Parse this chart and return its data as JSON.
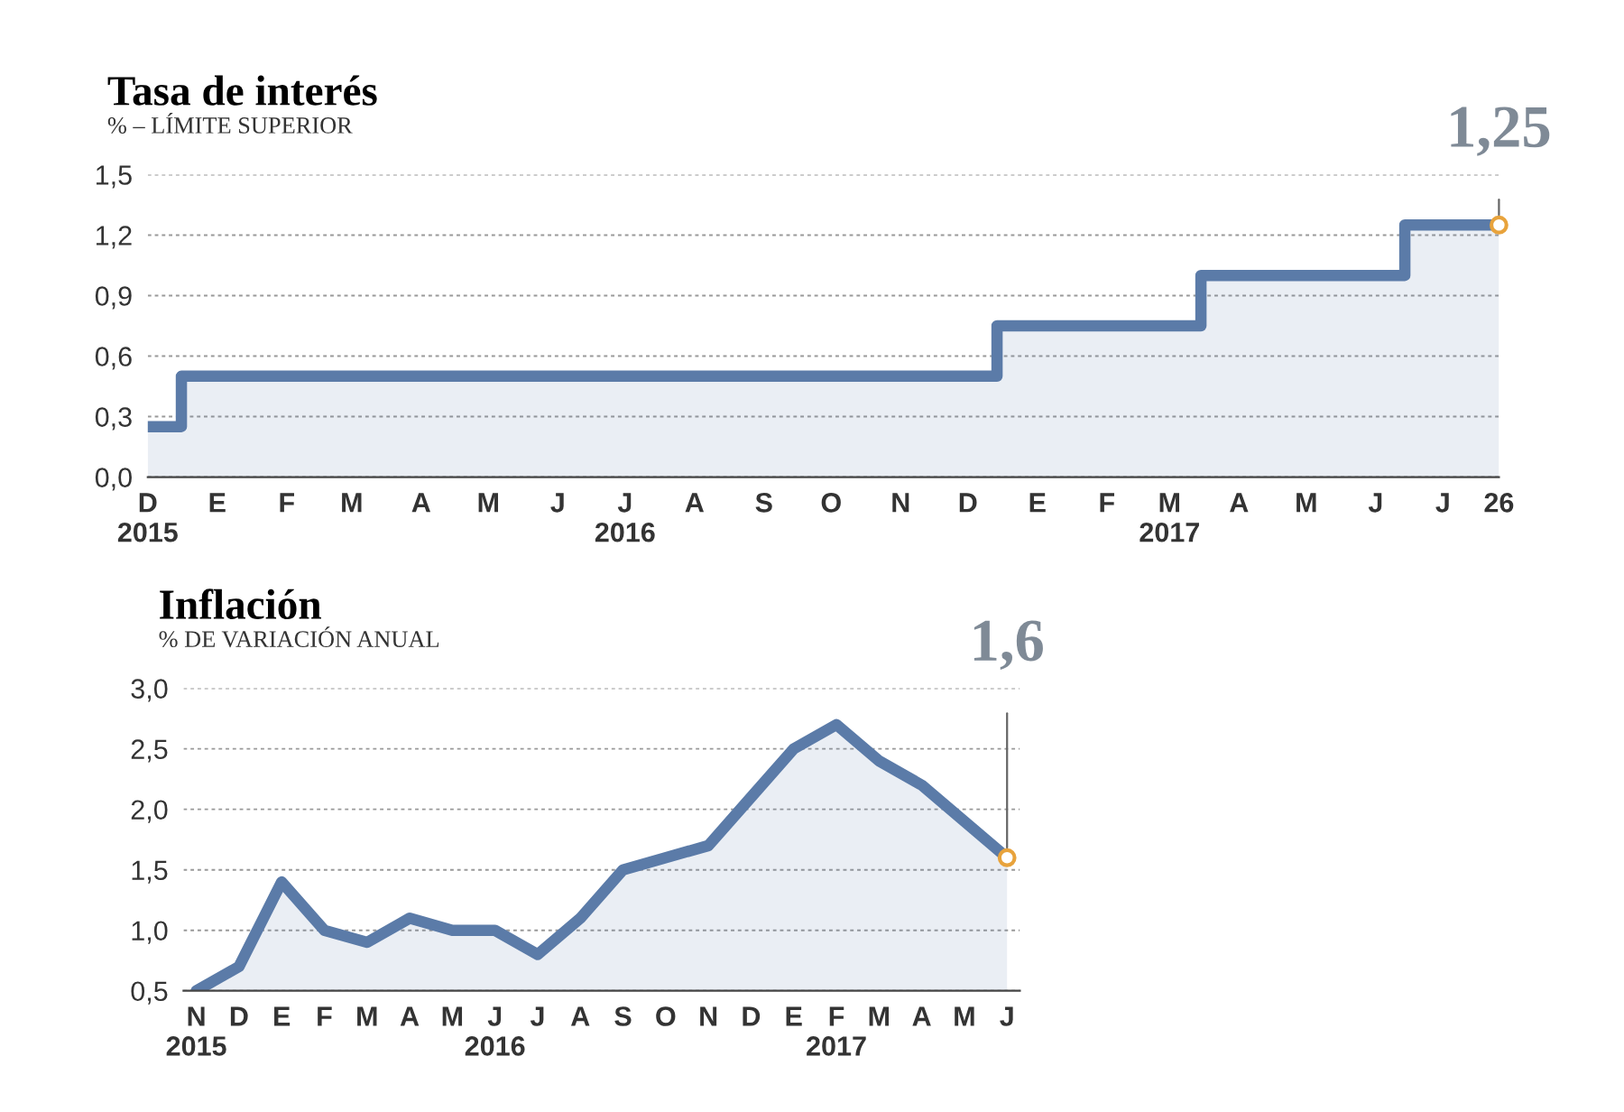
{
  "chart_data": [
    {
      "type": "area",
      "title": "Tasa de interés",
      "subtitle": "% – LÍMITE SUPERIOR",
      "x": [
        "2015-12-01",
        "2015-12-16",
        "2015-12-16",
        "2016-12-14",
        "2016-12-14",
        "2017-03-15",
        "2017-03-15",
        "2017-06-14",
        "2017-06-14",
        "2017-07-26"
      ],
      "series": [
        {
          "color": "#5b7ba8",
          "values": [
            0.25,
            0.25,
            0.5,
            0.5,
            0.75,
            0.75,
            1.0,
            1.0,
            1.25,
            1.25
          ],
          "value_labels": [
            null,
            null,
            null,
            null,
            null,
            null,
            null,
            null,
            null,
            "1,25"
          ]
        }
      ],
      "xlim": [
        "2015-12-01",
        "2017-07-26"
      ],
      "xticks": [
        {
          "value": "2015-12-01",
          "label": "D\n2015"
        },
        {
          "value": "2016-01-01",
          "label": "E"
        },
        {
          "value": "2016-02-01",
          "label": "F"
        },
        {
          "value": "2016-03-01",
          "label": "M"
        },
        {
          "value": "2016-04-01",
          "label": "A"
        },
        {
          "value": "2016-05-01",
          "label": "M"
        },
        {
          "value": "2016-06-01",
          "label": "J"
        },
        {
          "value": "2016-07-01",
          "label": "J\n2016"
        },
        {
          "value": "2016-08-01",
          "label": "A"
        },
        {
          "value": "2016-09-01",
          "label": "S"
        },
        {
          "value": "2016-10-01",
          "label": "O"
        },
        {
          "value": "2016-11-01",
          "label": "N"
        },
        {
          "value": "2016-12-01",
          "label": "D"
        },
        {
          "value": "2017-01-01",
          "label": "E"
        },
        {
          "value": "2017-02-01",
          "label": "F"
        },
        {
          "value": "2017-03-01",
          "label": "M\n2017"
        },
        {
          "value": "2017-04-01",
          "label": "A"
        },
        {
          "value": "2017-05-01",
          "label": "M"
        },
        {
          "value": "2017-06-01",
          "label": "J"
        },
        {
          "value": "2017-07-01",
          "label": "J"
        },
        {
          "value": "2017-07-26",
          "label": "26"
        }
      ],
      "ylim": [
        0,
        1.5
      ],
      "yticks": [
        {
          "value": 0,
          "label": "0,0"
        },
        {
          "value": 0.3,
          "label": "0,3"
        },
        {
          "value": 0.6,
          "label": "0,6"
        },
        {
          "value": 0.9,
          "label": "0,9"
        },
        {
          "value": 1.2,
          "label": "1,2"
        },
        {
          "value": 1.5,
          "label": "1,5"
        }
      ],
      "grid": "y"
    },
    {
      "type": "area",
      "title": "Inflación",
      "subtitle": "% DE VARIACIÓN ANUAL",
      "categories": [
        "N\n2015",
        "D",
        "E",
        "F",
        "M",
        "A",
        "M",
        "J\n2016",
        "J",
        "A",
        "S",
        "O",
        "N",
        "D",
        "E",
        "F\n2017",
        "M",
        "A",
        "M",
        "J"
      ],
      "series": [
        {
          "color": "#5b7ba8",
          "values": [
            0.5,
            0.7,
            1.4,
            1.0,
            0.9,
            1.1,
            1.0,
            1.0,
            0.8,
            1.1,
            1.5,
            1.6,
            1.7,
            2.1,
            2.5,
            2.7,
            2.4,
            2.2,
            1.9,
            1.6
          ],
          "value_labels": [
            null,
            null,
            null,
            null,
            null,
            null,
            null,
            null,
            null,
            null,
            null,
            null,
            null,
            null,
            null,
            null,
            null,
            null,
            null,
            "1,6"
          ]
        }
      ],
      "ylim": [
        0.5,
        3.0
      ],
      "yticks": [
        {
          "value": 0.5,
          "label": "0,5"
        },
        {
          "value": 1.0,
          "label": "1,0"
        },
        {
          "value": 1.5,
          "label": "1,5"
        },
        {
          "value": 2.0,
          "label": "2,0"
        },
        {
          "value": 2.5,
          "label": "2,5"
        },
        {
          "value": 3.0,
          "label": "3,0"
        }
      ],
      "grid": "y"
    }
  ]
}
